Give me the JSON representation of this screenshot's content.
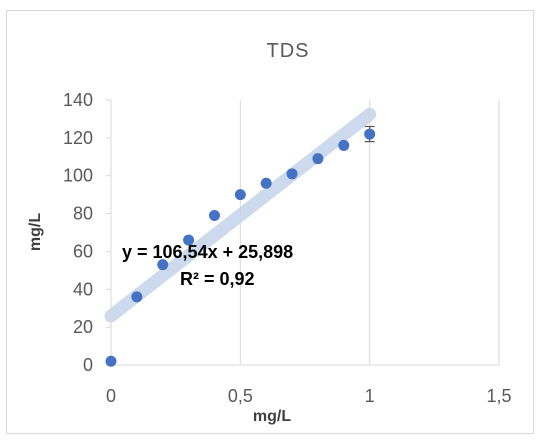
{
  "chart_data": {
    "type": "scatter",
    "title": "TDS",
    "xlabel": "mg/L",
    "ylabel": "mg/L",
    "xlim": [
      0,
      1.5
    ],
    "ylim": [
      0,
      140
    ],
    "x_ticks": [
      "0",
      "0,5",
      "1",
      "1,5"
    ],
    "y_ticks": [
      "0",
      "20",
      "40",
      "60",
      "80",
      "100",
      "120",
      "140"
    ],
    "grid": "vertical",
    "points": [
      {
        "x": 0.0,
        "y": 2
      },
      {
        "x": 0.1,
        "y": 36
      },
      {
        "x": 0.2,
        "y": 53
      },
      {
        "x": 0.3,
        "y": 66
      },
      {
        "x": 0.4,
        "y": 79
      },
      {
        "x": 0.5,
        "y": 90
      },
      {
        "x": 0.6,
        "y": 96
      },
      {
        "x": 0.7,
        "y": 101
      },
      {
        "x": 0.8,
        "y": 109
      },
      {
        "x": 0.9,
        "y": 116
      },
      {
        "x": 1.0,
        "y": 122,
        "error": 4
      }
    ],
    "trendline": {
      "slope": 106.54,
      "intercept": 25.898,
      "equation": "y = 106,54x + 25,898",
      "r_squared": "R² = 0,92"
    },
    "colors": {
      "marker": "#4472c4",
      "trendline": "#c5d3ea",
      "grid": "#d9d9d9",
      "error_bar": "#595959"
    }
  }
}
